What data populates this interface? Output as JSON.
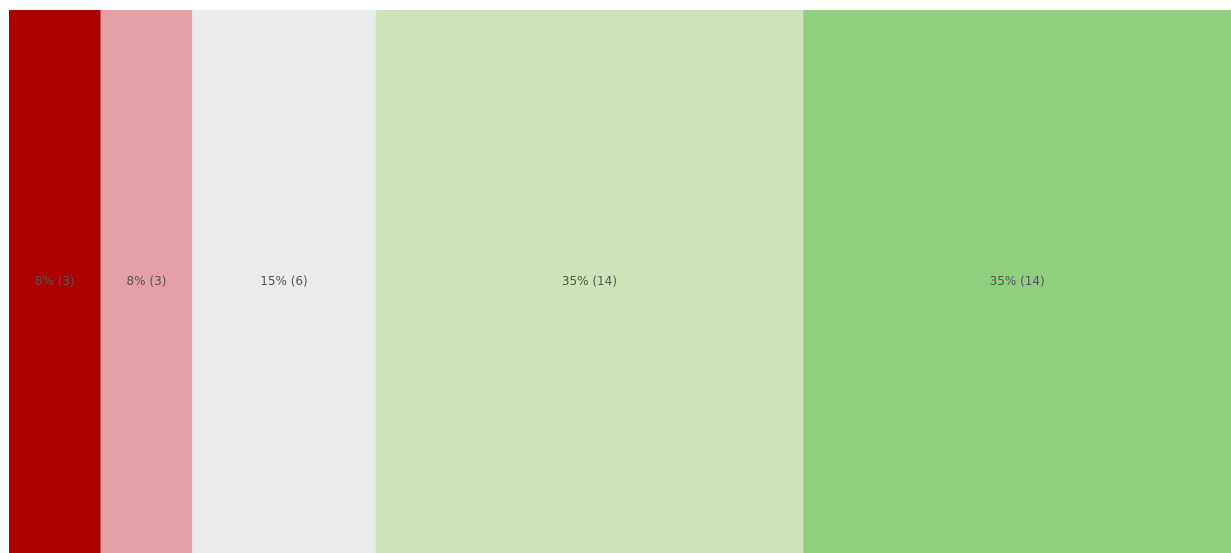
{
  "chart_data": {
    "type": "stacked-bar",
    "values": [
      3,
      3,
      6,
      14,
      14
    ],
    "value_labels": [
      "8% (3)",
      "8% (3)",
      "15% (6)",
      "35% (14)",
      "35% (14)"
    ],
    "colors": [
      "#ad0000",
      "#e5a0a6",
      "#ebebeb",
      "#cfe3b8",
      "#90cf80"
    ]
  }
}
